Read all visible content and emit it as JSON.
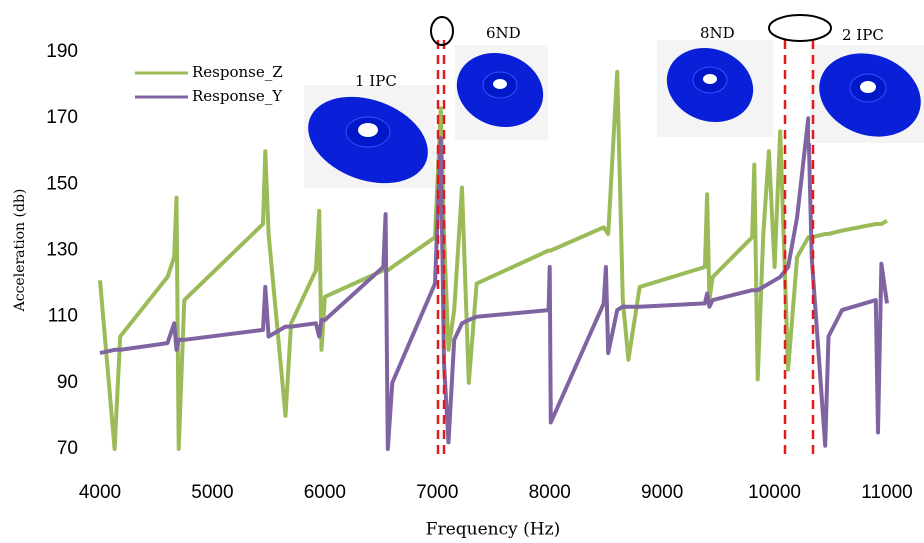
{
  "chart_data": {
    "type": "line",
    "x_label": "Frequency (Hz)",
    "y_label": "Acceleration (db)",
    "annotations": [
      "1 IPC",
      "6ND",
      "8ND",
      "2 IPC"
    ],
    "x": [
      4000,
      4130,
      4180,
      4600,
      4660,
      4680,
      4700,
      4750,
      5450,
      5470,
      5500,
      5650,
      5700,
      5920,
      5950,
      5970,
      6000,
      6520,
      6540,
      6560,
      6600,
      6980,
      7030,
      7060,
      7100,
      7150,
      7220,
      7280,
      7350,
      7990,
      8000,
      8010,
      8480,
      8500,
      8520,
      8600,
      8650,
      8700,
      8800,
      9380,
      9400,
      9420,
      9450,
      9800,
      9820,
      9850,
      9900,
      9950,
      10000,
      10050,
      10120,
      10200,
      10300,
      10330,
      10450,
      10480,
      10600,
      10900,
      10920,
      10950,
      11000
    ],
    "series": [
      {
        "name": "Response_Z",
        "color": "#9bbb59",
        "values": [
          121,
          70,
          104,
          122,
          128,
          146,
          70,
          115,
          138,
          160,
          135,
          80,
          108,
          124,
          142,
          100,
          116,
          124,
          124,
          124,
          125,
          134,
          173,
          135,
          100,
          112,
          149,
          90,
          120,
          130,
          130,
          130,
          137,
          136,
          135,
          184,
          115,
          97,
          119,
          125,
          147,
          115,
          122,
          134,
          156,
          91,
          135,
          160,
          125,
          166,
          94,
          128,
          134,
          134,
          135,
          135,
          136,
          138,
          138,
          138,
          139
        ]
      },
      {
        "name": "Response_Y",
        "color": "#8064a2",
        "values": [
          99,
          100,
          100,
          102,
          108,
          100,
          103,
          103,
          106,
          119,
          104,
          107,
          107,
          108,
          104,
          109,
          109,
          125,
          141,
          70,
          90,
          120,
          164,
          96,
          72,
          103,
          108,
          109,
          110,
          112,
          125,
          78,
          114,
          125,
          99,
          112,
          113,
          113,
          113,
          114,
          117,
          113,
          115,
          118,
          118,
          118,
          119,
          120,
          121,
          122,
          125,
          140,
          170,
          128,
          71,
          104,
          112,
          115,
          75,
          126,
          114
        ]
      }
    ],
    "xlim": [
      4000,
      11000
    ],
    "ylim": [
      70,
      190
    ],
    "xticks": [
      4000,
      5000,
      6000,
      7000,
      8000,
      9000,
      10000,
      11000
    ],
    "yticks": [
      70,
      90,
      110,
      130,
      150,
      170,
      190
    ]
  }
}
